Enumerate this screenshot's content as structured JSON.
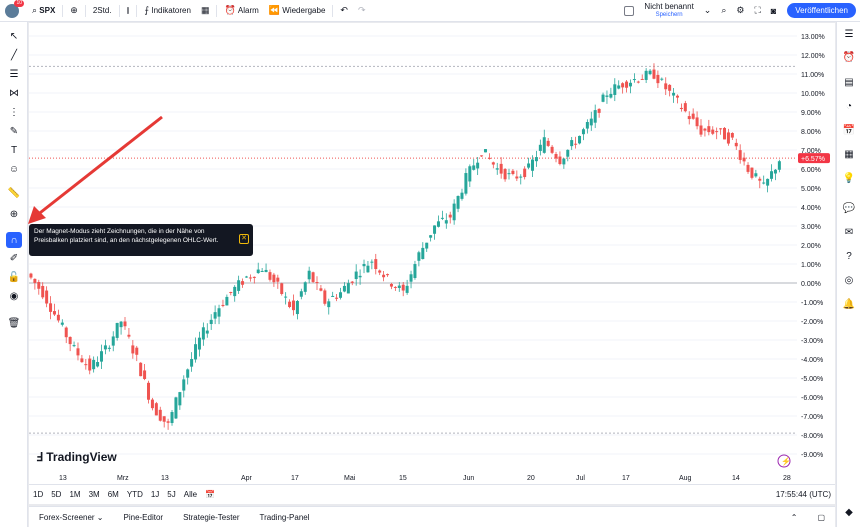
{
  "topbar": {
    "avatar_badge": "10",
    "symbol": "SPX",
    "interval": "2Std.",
    "indicators": "Indikatoren",
    "alarm": "Alarm",
    "replay": "Wiedergabe",
    "layout_name": "Nicht benannt",
    "layout_sub": "Speichern",
    "publish": "Veröffentlichen"
  },
  "tooltip": {
    "text": "Der Magnet-Modus zieht Zeichnungen, die in der Nähe von Preisbalken platziert sind, an den nächstgelegenen OHLC-Wert."
  },
  "logo": "TradingView",
  "chart_data": {
    "type": "line",
    "y_ticks": [
      "13.00%",
      "12.00%",
      "11.00%",
      "10.00%",
      "9.00%",
      "8.00%",
      "7.00%",
      "6.00%",
      "5.00%",
      "4.00%",
      "3.00%",
      "2.00%",
      "1.00%",
      "0.00%",
      "-1.00%",
      "-2.00%",
      "-3.00%",
      "-4.00%",
      "-5.00%",
      "-6.00%",
      "-7.00%",
      "-8.00%",
      "-9.00%"
    ],
    "x_ticks": [
      "13",
      "Mrz",
      "13",
      "Apr",
      "17",
      "Mai",
      "15",
      "Jun",
      "20",
      "Jul",
      "17",
      "Aug",
      "14",
      "28"
    ],
    "current_label": "+6.57%",
    "series": [
      {
        "values": [
          0.5,
          -0.5,
          -2.0,
          -3.5,
          -4.5,
          -3.5,
          -2.0,
          -4.0,
          -6.5,
          -7.5,
          -5.0,
          -3.0,
          -1.5,
          -0.5,
          0.3,
          0.8,
          -0.2,
          -1.5,
          0.5,
          -1.0,
          -0.5,
          0.5,
          1.2,
          0.2,
          -0.5,
          1.5,
          3.0,
          3.5,
          5.5,
          7.0,
          6.0,
          5.5,
          6.0,
          7.5,
          6.5,
          7.5,
          8.5,
          10.0,
          10.5,
          10.8,
          11.0,
          10.0,
          9.0,
          8.0,
          8.0,
          7.5,
          6.0,
          5.0,
          6.5
        ]
      }
    ],
    "ylim": [
      -9,
      13
    ]
  },
  "bottombar": {
    "ranges": [
      "1D",
      "5D",
      "1M",
      "3M",
      "6M",
      "YTD",
      "1J",
      "5J",
      "Alle"
    ],
    "time": "17:55:44 (UTC)"
  },
  "footer": {
    "items": [
      "Forex-Screener",
      "Pine-Editor",
      "Strategie-Tester",
      "Trading-Panel"
    ]
  },
  "colors": {
    "accent": "#2962ff",
    "up": "#26a69a",
    "down": "#ef5350"
  }
}
